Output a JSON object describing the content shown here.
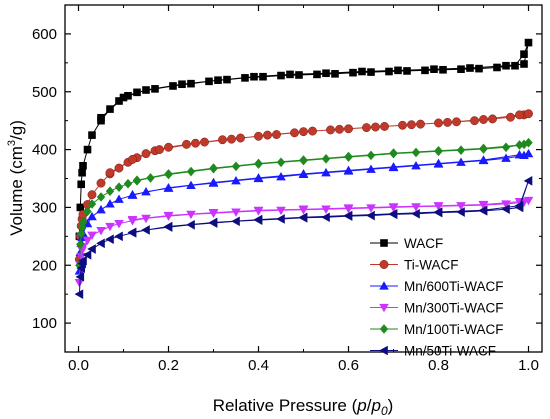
{
  "chart_data": {
    "type": "line",
    "xlabel_parts": [
      "Relative Pressure (",
      "p",
      "/",
      "p",
      "0",
      ")"
    ],
    "ylabel_parts": [
      "Volume (cm",
      "3",
      "/g)"
    ],
    "xlim": [
      -0.03,
      1.03
    ],
    "ylim": [
      50,
      650
    ],
    "xticks": [
      0.0,
      0.2,
      0.4,
      0.6,
      0.8,
      1.0
    ],
    "xtick_labels": [
      "0.0",
      "0.2",
      "0.4",
      "0.6",
      "0.8",
      "1.0"
    ],
    "yticks": [
      100,
      200,
      300,
      400,
      500,
      600
    ],
    "ytick_labels": [
      "100",
      "200",
      "300",
      "400",
      "500",
      "600"
    ],
    "legend_position": "bottom-right",
    "series": [
      {
        "name": "WACF",
        "color": "#000000",
        "marker": "square",
        "adsorption": [
          [
            0.002,
            250
          ],
          [
            0.004,
            300
          ],
          [
            0.006,
            340
          ],
          [
            0.008,
            360
          ],
          [
            0.01,
            372
          ],
          [
            0.02,
            400
          ],
          [
            0.03,
            425
          ],
          [
            0.05,
            450
          ],
          [
            0.07,
            470
          ],
          [
            0.09,
            484
          ],
          [
            0.11,
            493
          ],
          [
            0.13,
            499
          ],
          [
            0.17,
            505
          ],
          [
            0.21,
            510
          ],
          [
            0.25,
            514
          ],
          [
            0.29,
            518
          ],
          [
            0.33,
            521
          ],
          [
            0.37,
            524
          ],
          [
            0.41,
            526
          ],
          [
            0.45,
            528
          ],
          [
            0.49,
            529
          ],
          [
            0.53,
            530
          ],
          [
            0.57,
            531
          ],
          [
            0.61,
            533
          ],
          [
            0.65,
            534
          ],
          [
            0.69,
            535
          ],
          [
            0.73,
            536
          ],
          [
            0.77,
            537
          ],
          [
            0.81,
            538
          ],
          [
            0.85,
            539
          ],
          [
            0.89,
            540
          ],
          [
            0.93,
            542
          ],
          [
            0.97,
            545
          ],
          [
            0.99,
            565
          ],
          [
            1.0,
            585
          ]
        ],
        "desorption": [
          [
            0.99,
            548
          ],
          [
            0.95,
            545
          ],
          [
            0.87,
            541
          ],
          [
            0.79,
            539
          ],
          [
            0.71,
            537
          ],
          [
            0.63,
            535
          ],
          [
            0.55,
            532
          ],
          [
            0.47,
            530
          ],
          [
            0.39,
            526
          ],
          [
            0.31,
            520
          ],
          [
            0.23,
            513
          ],
          [
            0.15,
            503
          ],
          [
            0.1,
            490
          ],
          [
            0.05,
            455
          ]
        ]
      },
      {
        "name": "Ti-WACF",
        "color": "#c0392b",
        "marker": "circle",
        "adsorption": [
          [
            0.002,
            210
          ],
          [
            0.004,
            250
          ],
          [
            0.006,
            268
          ],
          [
            0.008,
            280
          ],
          [
            0.01,
            288
          ],
          [
            0.02,
            305
          ],
          [
            0.03,
            322
          ],
          [
            0.05,
            342
          ],
          [
            0.07,
            358
          ],
          [
            0.09,
            368
          ],
          [
            0.11,
            378
          ],
          [
            0.13,
            386
          ],
          [
            0.15,
            393
          ],
          [
            0.17,
            398
          ],
          [
            0.2,
            404
          ],
          [
            0.24,
            409
          ],
          [
            0.28,
            413
          ],
          [
            0.32,
            417
          ],
          [
            0.36,
            420
          ],
          [
            0.4,
            423
          ],
          [
            0.44,
            426
          ],
          [
            0.48,
            429
          ],
          [
            0.52,
            432
          ],
          [
            0.56,
            434
          ],
          [
            0.6,
            436
          ],
          [
            0.64,
            438
          ],
          [
            0.68,
            440
          ],
          [
            0.72,
            442
          ],
          [
            0.76,
            444
          ],
          [
            0.8,
            446
          ],
          [
            0.84,
            448
          ],
          [
            0.88,
            450
          ],
          [
            0.92,
            453
          ],
          [
            0.96,
            456
          ],
          [
            0.99,
            460
          ],
          [
            1.0,
            462
          ]
        ],
        "desorption": [
          [
            0.98,
            460
          ],
          [
            0.9,
            452
          ],
          [
            0.82,
            447
          ],
          [
            0.74,
            443
          ],
          [
            0.66,
            439
          ],
          [
            0.58,
            435
          ],
          [
            0.5,
            431
          ],
          [
            0.42,
            425
          ],
          [
            0.34,
            418
          ],
          [
            0.26,
            411
          ],
          [
            0.18,
            400
          ],
          [
            0.12,
            383
          ],
          [
            0.07,
            360
          ]
        ]
      },
      {
        "name": "Mn/600Ti-WACF",
        "color": "#1a1aff",
        "marker": "triangle-up",
        "adsorption": [
          [
            0.002,
            190
          ],
          [
            0.004,
            222
          ],
          [
            0.006,
            238
          ],
          [
            0.008,
            248
          ],
          [
            0.01,
            255
          ],
          [
            0.02,
            272
          ],
          [
            0.03,
            284
          ],
          [
            0.05,
            296
          ],
          [
            0.07,
            306
          ],
          [
            0.09,
            314
          ],
          [
            0.12,
            321
          ],
          [
            0.15,
            327
          ],
          [
            0.2,
            333
          ],
          [
            0.25,
            338
          ],
          [
            0.3,
            342
          ],
          [
            0.35,
            346
          ],
          [
            0.4,
            350
          ],
          [
            0.45,
            353
          ],
          [
            0.5,
            357
          ],
          [
            0.55,
            360
          ],
          [
            0.6,
            363
          ],
          [
            0.65,
            366
          ],
          [
            0.7,
            369
          ],
          [
            0.75,
            372
          ],
          [
            0.8,
            375
          ],
          [
            0.85,
            378
          ],
          [
            0.9,
            381
          ],
          [
            0.95,
            385
          ],
          [
            0.99,
            390
          ],
          [
            1.0,
            393
          ]
        ],
        "desorption": [
          [
            0.98,
            391
          ],
          [
            0.9,
            382
          ],
          [
            0.8,
            376
          ],
          [
            0.7,
            370
          ],
          [
            0.6,
            364
          ],
          [
            0.5,
            358
          ],
          [
            0.4,
            351
          ],
          [
            0.3,
            343
          ],
          [
            0.2,
            334
          ],
          [
            0.12,
            322
          ]
        ]
      },
      {
        "name": "Mn/300Ti-WACF",
        "color": "#cc33ff",
        "marker": "triangle-down",
        "adsorption": [
          [
            0.002,
            170
          ],
          [
            0.004,
            200
          ],
          [
            0.006,
            215
          ],
          [
            0.008,
            226
          ],
          [
            0.01,
            232
          ],
          [
            0.02,
            243
          ],
          [
            0.03,
            252
          ],
          [
            0.05,
            260
          ],
          [
            0.07,
            267
          ],
          [
            0.09,
            272
          ],
          [
            0.12,
            277
          ],
          [
            0.15,
            281
          ],
          [
            0.2,
            285
          ],
          [
            0.25,
            288
          ],
          [
            0.3,
            290
          ],
          [
            0.35,
            292
          ],
          [
            0.4,
            294
          ],
          [
            0.45,
            295
          ],
          [
            0.5,
            296
          ],
          [
            0.55,
            297
          ],
          [
            0.6,
            298
          ],
          [
            0.65,
            299
          ],
          [
            0.7,
            300
          ],
          [
            0.75,
            301
          ],
          [
            0.8,
            302
          ],
          [
            0.85,
            303
          ],
          [
            0.9,
            304
          ],
          [
            0.95,
            306
          ],
          [
            0.99,
            309
          ],
          [
            1.0,
            312
          ]
        ],
        "desorption": [
          [
            0.98,
            310
          ],
          [
            0.9,
            305
          ],
          [
            0.8,
            303
          ],
          [
            0.7,
            301
          ],
          [
            0.6,
            299
          ],
          [
            0.5,
            297
          ],
          [
            0.4,
            295
          ],
          [
            0.3,
            291
          ],
          [
            0.2,
            286
          ],
          [
            0.12,
            279
          ]
        ]
      },
      {
        "name": "Mn/100Ti-WACF",
        "color": "#1f8a1f",
        "marker": "diamond",
        "adsorption": [
          [
            0.002,
            200
          ],
          [
            0.004,
            236
          ],
          [
            0.006,
            255
          ],
          [
            0.008,
            266
          ],
          [
            0.01,
            274
          ],
          [
            0.02,
            293
          ],
          [
            0.03,
            306
          ],
          [
            0.05,
            318
          ],
          [
            0.07,
            328
          ],
          [
            0.09,
            335
          ],
          [
            0.11,
            341
          ],
          [
            0.13,
            346
          ],
          [
            0.16,
            351
          ],
          [
            0.2,
            357
          ],
          [
            0.25,
            362
          ],
          [
            0.3,
            367
          ],
          [
            0.35,
            371
          ],
          [
            0.4,
            375
          ],
          [
            0.45,
            378
          ],
          [
            0.5,
            381
          ],
          [
            0.55,
            384
          ],
          [
            0.6,
            387
          ],
          [
            0.65,
            390
          ],
          [
            0.7,
            393
          ],
          [
            0.75,
            395
          ],
          [
            0.8,
            397
          ],
          [
            0.85,
            399
          ],
          [
            0.9,
            401
          ],
          [
            0.95,
            404
          ],
          [
            0.99,
            409
          ],
          [
            1.0,
            412
          ]
        ],
        "desorption": [
          [
            0.98,
            408
          ],
          [
            0.9,
            402
          ],
          [
            0.8,
            398
          ],
          [
            0.7,
            394
          ],
          [
            0.6,
            388
          ],
          [
            0.5,
            382
          ],
          [
            0.4,
            376
          ],
          [
            0.3,
            368
          ],
          [
            0.2,
            358
          ],
          [
            0.13,
            347
          ]
        ]
      },
      {
        "name": "Mn/50Ti-WACF",
        "color": "#0d0d80",
        "marker": "triangle-left",
        "adsorption": [
          [
            0.002,
            150
          ],
          [
            0.004,
            180
          ],
          [
            0.006,
            195
          ],
          [
            0.008,
            203
          ],
          [
            0.01,
            208
          ],
          [
            0.02,
            218
          ],
          [
            0.03,
            228
          ],
          [
            0.05,
            238
          ],
          [
            0.07,
            245
          ],
          [
            0.09,
            250
          ],
          [
            0.12,
            256
          ],
          [
            0.15,
            261
          ],
          [
            0.2,
            266
          ],
          [
            0.25,
            270
          ],
          [
            0.3,
            273
          ],
          [
            0.35,
            276
          ],
          [
            0.4,
            278
          ],
          [
            0.45,
            280
          ],
          [
            0.5,
            282
          ],
          [
            0.55,
            283
          ],
          [
            0.6,
            285
          ],
          [
            0.65,
            286
          ],
          [
            0.7,
            288
          ],
          [
            0.75,
            289
          ],
          [
            0.8,
            291
          ],
          [
            0.85,
            292
          ],
          [
            0.9,
            294
          ],
          [
            0.95,
            297
          ],
          [
            0.98,
            300
          ],
          [
            1.0,
            346
          ]
        ],
        "desorption": [
          [
            0.98,
            303
          ],
          [
            0.9,
            295
          ],
          [
            0.8,
            292
          ],
          [
            0.7,
            289
          ],
          [
            0.6,
            286
          ],
          [
            0.5,
            283
          ],
          [
            0.4,
            279
          ],
          [
            0.3,
            274
          ],
          [
            0.2,
            267
          ],
          [
            0.12,
            257
          ]
        ]
      }
    ]
  }
}
